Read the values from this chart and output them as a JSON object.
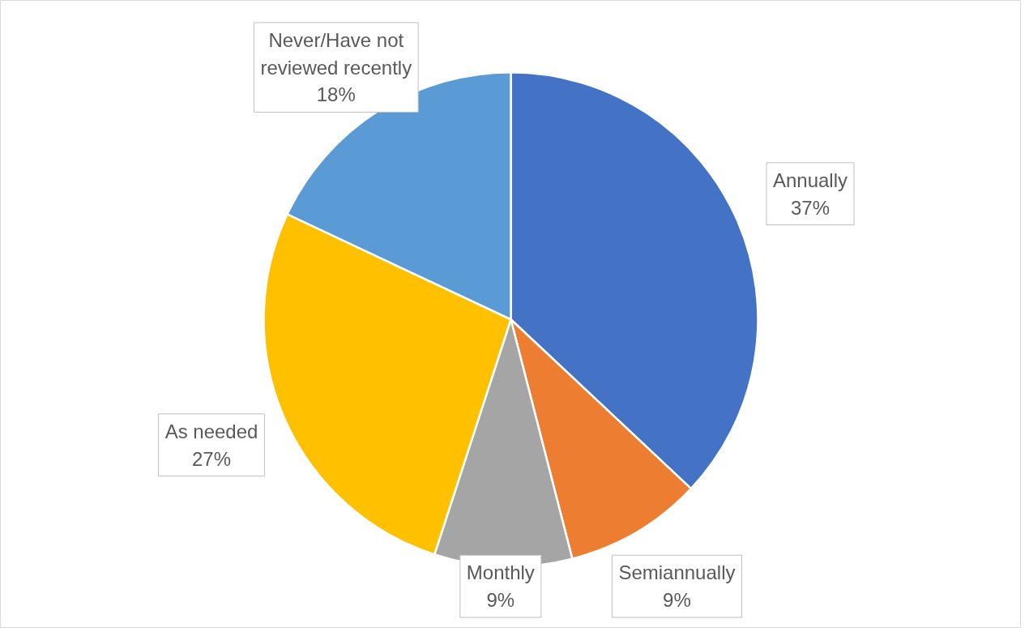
{
  "chart_data": {
    "type": "pie",
    "categories": [
      "Annually",
      "Semiannually",
      "Monthly",
      "As needed",
      "Never/Have not reviewed recently"
    ],
    "values": [
      37,
      9,
      9,
      27,
      18
    ],
    "colors": [
      "#4472c4",
      "#ed7d31",
      "#a5a5a5",
      "#ffc000",
      "#5b9bd5"
    ],
    "value_labels": [
      "37%",
      "9%",
      "9%",
      "27%",
      "18%"
    ]
  }
}
